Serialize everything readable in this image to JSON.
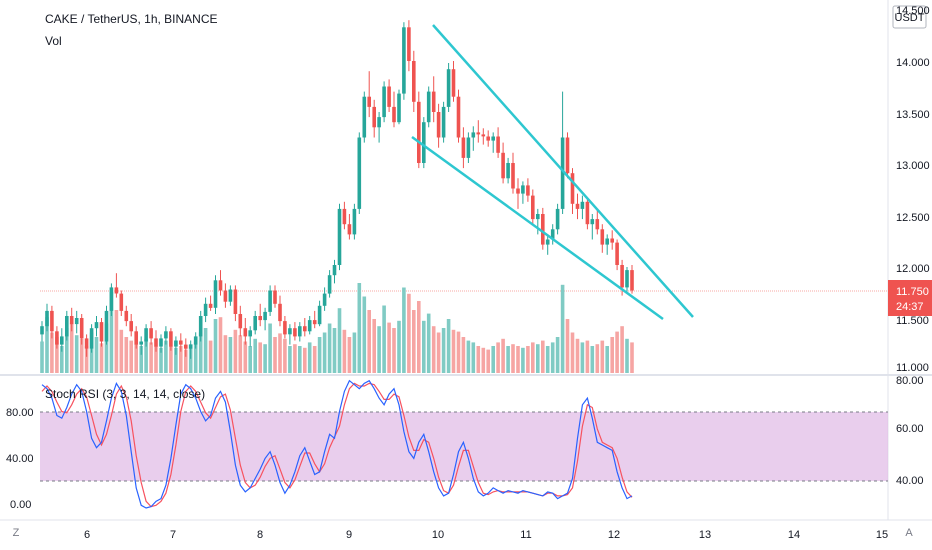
{
  "header": {
    "symbol": "CAKE / TetherUS, 1h, BINANCE",
    "volume_label": "Vol"
  },
  "price_axis": {
    "currency": "USDT",
    "ticks": [
      "14.500",
      "14.000",
      "13.500",
      "13.000",
      "12.500",
      "12.000",
      "11.500",
      "11.000"
    ],
    "last_price": "11.750",
    "countdown": "24:37"
  },
  "indicator": {
    "label": "Stoch RSI (3, 3, 14, 14, close)",
    "left_ticks": [
      "80.00",
      "40.00",
      "0.00"
    ],
    "right_ticks": [
      "80.00",
      "60.00",
      "40.00"
    ]
  },
  "time_axis": {
    "ticks": [
      "6",
      "7",
      "8",
      "9",
      "10",
      "11",
      "12",
      "13",
      "14",
      "15"
    ]
  },
  "corner": {
    "left": "Z",
    "right": "A"
  },
  "colors": {
    "up": "#26a69a",
    "down": "#ef5350",
    "vol_up": "#80cbc4",
    "vol_down": "#f6a5a3",
    "trendline": "#2ec7d0",
    "k_line": "#2962ff",
    "d_line": "#f7525f",
    "band": "#e1bee7",
    "price_line": "#f7a8a6",
    "badge": "#ef5350"
  },
  "chart_data": {
    "type": "candlestick",
    "title": "CAKE / TetherUS, 1h, BINANCE",
    "x_ticks": [
      "6",
      "7",
      "8",
      "9",
      "10",
      "11",
      "12",
      "13",
      "14",
      "15"
    ],
    "ylim": [
      11.0,
      14.5
    ],
    "candles_ohlc": [
      [
        11.32,
        11.45,
        11.25,
        11.4
      ],
      [
        11.4,
        11.62,
        11.35,
        11.55
      ],
      [
        11.55,
        11.6,
        11.28,
        11.35
      ],
      [
        11.35,
        11.4,
        11.18,
        11.22
      ],
      [
        11.22,
        11.38,
        11.15,
        11.3
      ],
      [
        11.3,
        11.55,
        11.26,
        11.5
      ],
      [
        11.5,
        11.58,
        11.35,
        11.42
      ],
      [
        11.42,
        11.55,
        11.33,
        11.48
      ],
      [
        11.48,
        11.52,
        11.22,
        11.28
      ],
      [
        11.28,
        11.32,
        11.1,
        11.18
      ],
      [
        11.18,
        11.42,
        11.14,
        11.38
      ],
      [
        11.38,
        11.5,
        11.3,
        11.44
      ],
      [
        11.44,
        11.48,
        11.2,
        11.25
      ],
      [
        11.25,
        11.6,
        11.22,
        11.55
      ],
      [
        11.55,
        11.82,
        11.5,
        11.78
      ],
      [
        11.78,
        11.92,
        11.68,
        11.72
      ],
      [
        11.72,
        11.75,
        11.5,
        11.55
      ],
      [
        11.55,
        11.6,
        11.4,
        11.45
      ],
      [
        11.45,
        11.52,
        11.3,
        11.35
      ],
      [
        11.35,
        11.4,
        11.18,
        11.22
      ],
      [
        11.22,
        11.3,
        11.12,
        11.25
      ],
      [
        11.25,
        11.42,
        11.2,
        11.38
      ],
      [
        11.38,
        11.45,
        11.22,
        11.28
      ],
      [
        11.28,
        11.36,
        11.15,
        11.2
      ],
      [
        11.2,
        11.32,
        11.14,
        11.28
      ],
      [
        11.28,
        11.4,
        11.22,
        11.35
      ],
      [
        11.35,
        11.38,
        11.16,
        11.2
      ],
      [
        11.2,
        11.3,
        11.12,
        11.26
      ],
      [
        11.26,
        11.33,
        11.15,
        11.22
      ],
      [
        11.22,
        11.28,
        11.1,
        11.18
      ],
      [
        11.18,
        11.26,
        11.08,
        11.22
      ],
      [
        11.22,
        11.34,
        11.18,
        11.3
      ],
      [
        11.3,
        11.55,
        11.25,
        11.5
      ],
      [
        11.5,
        11.68,
        11.44,
        11.62
      ],
      [
        11.62,
        11.7,
        11.55,
        11.58
      ],
      [
        11.58,
        11.9,
        11.52,
        11.85
      ],
      [
        11.85,
        11.95,
        11.7,
        11.75
      ],
      [
        11.75,
        11.82,
        11.58,
        11.64
      ],
      [
        11.64,
        11.8,
        11.6,
        11.76
      ],
      [
        11.76,
        11.8,
        11.45,
        11.52
      ],
      [
        11.52,
        11.6,
        11.3,
        11.38
      ],
      [
        11.38,
        11.48,
        11.22,
        11.3
      ],
      [
        11.3,
        11.4,
        11.2,
        11.36
      ],
      [
        11.36,
        11.55,
        11.32,
        11.5
      ],
      [
        11.5,
        11.62,
        11.4,
        11.46
      ],
      [
        11.46,
        11.58,
        11.36,
        11.54
      ],
      [
        11.54,
        11.8,
        11.5,
        11.75
      ],
      [
        11.75,
        11.8,
        11.58,
        11.62
      ],
      [
        11.62,
        11.7,
        11.4,
        11.45
      ],
      [
        11.45,
        11.5,
        11.28,
        11.32
      ],
      [
        11.32,
        11.42,
        11.22,
        11.38
      ],
      [
        11.38,
        11.44,
        11.26,
        11.3
      ],
      [
        11.3,
        11.44,
        11.25,
        11.4
      ],
      [
        11.4,
        11.48,
        11.3,
        11.35
      ],
      [
        11.35,
        11.5,
        11.32,
        11.46
      ],
      [
        11.46,
        11.55,
        11.38,
        11.42
      ],
      [
        11.42,
        11.65,
        11.4,
        11.6
      ],
      [
        11.6,
        11.78,
        11.55,
        11.72
      ],
      [
        11.72,
        11.95,
        11.68,
        11.9
      ],
      [
        11.9,
        12.05,
        11.82,
        12.0
      ],
      [
        12.0,
        12.6,
        11.95,
        12.55
      ],
      [
        12.55,
        12.62,
        12.35,
        12.4
      ],
      [
        12.4,
        12.5,
        12.25,
        12.3
      ],
      [
        12.3,
        12.6,
        12.25,
        12.55
      ],
      [
        12.55,
        13.3,
        12.5,
        13.25
      ],
      [
        13.25,
        13.7,
        13.2,
        13.65
      ],
      [
        13.65,
        13.9,
        13.45,
        13.55
      ],
      [
        13.55,
        13.62,
        13.25,
        13.35
      ],
      [
        13.35,
        13.5,
        13.2,
        13.45
      ],
      [
        13.45,
        13.8,
        13.4,
        13.75
      ],
      [
        13.75,
        13.82,
        13.5,
        13.55
      ],
      [
        13.55,
        13.7,
        13.35,
        13.4
      ],
      [
        13.4,
        13.72,
        13.38,
        13.68
      ],
      [
        13.68,
        14.38,
        13.62,
        14.33
      ],
      [
        14.33,
        14.4,
        13.9,
        14.0
      ],
      [
        14.0,
        14.1,
        13.5,
        13.6
      ],
      [
        13.6,
        13.7,
        12.95,
        13.0
      ],
      [
        13.0,
        13.45,
        12.95,
        13.4
      ],
      [
        13.4,
        13.75,
        13.35,
        13.7
      ],
      [
        13.7,
        13.85,
        13.4,
        13.5
      ],
      [
        13.5,
        13.58,
        13.15,
        13.25
      ],
      [
        13.25,
        13.6,
        13.2,
        13.55
      ],
      [
        13.55,
        13.98,
        13.5,
        13.92
      ],
      [
        13.92,
        14.0,
        13.6,
        13.65
      ],
      [
        13.65,
        13.72,
        13.2,
        13.25
      ],
      [
        13.25,
        13.35,
        12.95,
        13.05
      ],
      [
        13.05,
        13.3,
        13.0,
        13.25
      ],
      [
        13.25,
        13.36,
        13.12,
        13.3
      ],
      [
        13.3,
        13.42,
        13.2,
        13.28
      ],
      [
        13.28,
        13.34,
        13.18,
        13.26
      ],
      [
        13.26,
        13.32,
        13.16,
        13.22
      ],
      [
        13.22,
        13.3,
        13.1,
        13.26
      ],
      [
        13.26,
        13.35,
        13.05,
        13.1
      ],
      [
        13.1,
        13.2,
        12.8,
        12.85
      ],
      [
        12.85,
        13.05,
        12.8,
        13.0
      ],
      [
        13.0,
        13.1,
        12.7,
        12.75
      ],
      [
        12.75,
        12.85,
        12.55,
        12.7
      ],
      [
        12.7,
        12.82,
        12.6,
        12.78
      ],
      [
        12.78,
        12.85,
        12.62,
        12.68
      ],
      [
        12.68,
        12.74,
        12.4,
        12.45
      ],
      [
        12.45,
        12.55,
        12.3,
        12.5
      ],
      [
        12.5,
        12.56,
        12.15,
        12.2
      ],
      [
        12.2,
        12.3,
        12.1,
        12.25
      ],
      [
        12.25,
        12.4,
        12.2,
        12.35
      ],
      [
        12.35,
        12.6,
        12.3,
        12.55
      ],
      [
        12.55,
        13.7,
        12.5,
        13.25
      ],
      [
        13.25,
        13.3,
        12.85,
        12.9
      ],
      [
        12.9,
        12.95,
        12.5,
        12.6
      ],
      [
        12.6,
        12.7,
        12.45,
        12.55
      ],
      [
        12.55,
        12.68,
        12.45,
        12.62
      ],
      [
        12.62,
        12.66,
        12.35,
        12.4
      ],
      [
        12.4,
        12.5,
        12.25,
        12.45
      ],
      [
        12.45,
        12.55,
        12.3,
        12.35
      ],
      [
        12.35,
        12.4,
        12.12,
        12.2
      ],
      [
        12.2,
        12.3,
        12.1,
        12.26
      ],
      [
        12.26,
        12.34,
        12.15,
        12.22
      ],
      [
        12.22,
        12.25,
        11.95,
        12.0
      ],
      [
        12.0,
        12.05,
        11.7,
        11.78
      ],
      [
        11.78,
        11.98,
        11.74,
        11.95
      ],
      [
        11.95,
        12.0,
        11.72,
        11.75
      ]
    ],
    "volume_relative": [
      0.35,
      0.62,
      0.45,
      0.4,
      0.3,
      0.5,
      0.55,
      0.42,
      0.38,
      0.3,
      0.45,
      0.4,
      0.33,
      0.55,
      0.9,
      0.7,
      0.48,
      0.4,
      0.36,
      0.32,
      0.3,
      0.38,
      0.34,
      0.3,
      0.28,
      0.36,
      0.3,
      0.28,
      0.3,
      0.26,
      0.32,
      0.34,
      0.45,
      0.5,
      0.36,
      0.6,
      0.62,
      0.42,
      0.4,
      0.48,
      0.42,
      0.35,
      0.3,
      0.38,
      0.34,
      0.32,
      0.55,
      0.4,
      0.44,
      0.38,
      0.3,
      0.32,
      0.3,
      0.28,
      0.34,
      0.3,
      0.4,
      0.45,
      0.55,
      0.5,
      0.72,
      0.48,
      0.4,
      0.45,
      1.0,
      0.85,
      0.7,
      0.6,
      0.52,
      0.75,
      0.56,
      0.5,
      0.58,
      0.95,
      0.88,
      0.7,
      0.8,
      0.58,
      0.66,
      0.52,
      0.45,
      0.5,
      0.6,
      0.48,
      0.46,
      0.4,
      0.36,
      0.34,
      0.3,
      0.28,
      0.26,
      0.3,
      0.34,
      0.38,
      0.3,
      0.32,
      0.3,
      0.28,
      0.3,
      0.34,
      0.32,
      0.36,
      0.3,
      0.34,
      0.4,
      0.98,
      0.6,
      0.45,
      0.38,
      0.34,
      0.36,
      0.3,
      0.32,
      0.36,
      0.3,
      0.4,
      0.46,
      0.52,
      0.38,
      0.34
    ],
    "stoch_k": [
      95,
      92,
      85,
      72,
      70,
      78,
      88,
      95,
      90,
      75,
      55,
      48,
      52,
      68,
      85,
      96,
      90,
      72,
      45,
      18,
      5,
      3,
      4,
      8,
      10,
      20,
      40,
      65,
      88,
      95,
      92,
      85,
      75,
      68,
      72,
      85,
      90,
      82,
      60,
      35,
      20,
      15,
      18,
      25,
      32,
      40,
      45,
      35,
      22,
      14,
      20,
      30,
      42,
      48,
      38,
      28,
      30,
      45,
      58,
      55,
      75,
      90,
      98,
      95,
      92,
      96,
      98,
      92,
      85,
      80,
      88,
      92,
      80,
      60,
      45,
      40,
      52,
      58,
      45,
      30,
      18,
      12,
      14,
      28,
      45,
      52,
      40,
      25,
      15,
      12,
      14,
      18,
      16,
      14,
      16,
      15,
      14,
      16,
      15,
      14,
      13,
      12,
      15,
      14,
      10,
      12,
      14,
      25,
      55,
      80,
      85,
      70,
      52,
      50,
      48,
      46,
      30,
      18,
      10,
      12
    ],
    "stoch_d": [
      90,
      94,
      90,
      82,
      75,
      74,
      80,
      88,
      92,
      86,
      72,
      58,
      50,
      58,
      72,
      88,
      94,
      86,
      68,
      42,
      22,
      8,
      4,
      5,
      8,
      14,
      28,
      50,
      75,
      90,
      94,
      90,
      82,
      74,
      70,
      78,
      86,
      88,
      76,
      55,
      35,
      22,
      18,
      20,
      26,
      34,
      40,
      42,
      32,
      22,
      18,
      24,
      34,
      44,
      44,
      36,
      30,
      36,
      48,
      56,
      64,
      80,
      92,
      96,
      94,
      94,
      96,
      95,
      90,
      84,
      84,
      88,
      86,
      72,
      56,
      46,
      46,
      54,
      52,
      40,
      26,
      16,
      14,
      20,
      34,
      46,
      46,
      34,
      22,
      14,
      13,
      15,
      16,
      15,
      15,
      15,
      15,
      15,
      15,
      14,
      13,
      12,
      14,
      14,
      12,
      12,
      13,
      18,
      38,
      64,
      80,
      78,
      62,
      52,
      50,
      48,
      40,
      26,
      15,
      11
    ]
  }
}
